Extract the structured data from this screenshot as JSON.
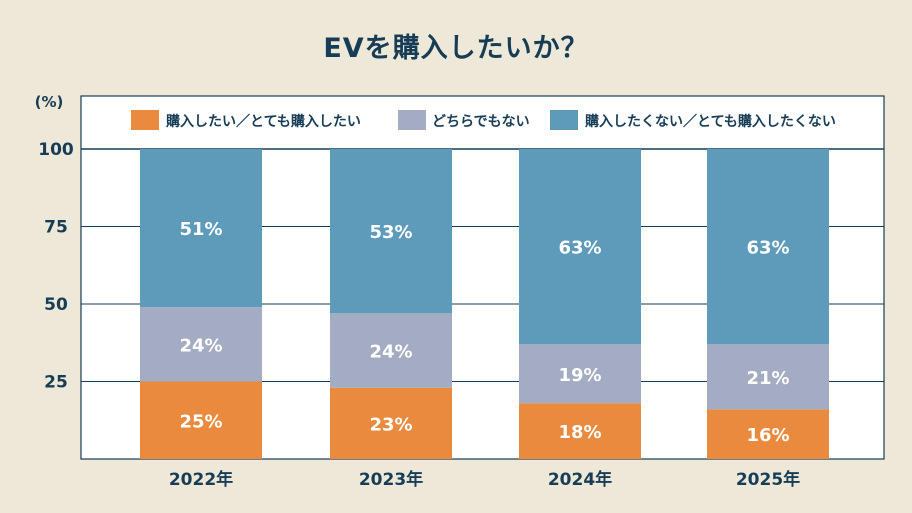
{
  "chart_data": {
    "type": "bar",
    "stacked": true,
    "title": "EVを購入したいか？",
    "ylabel": "(%)",
    "ylim": [
      0,
      100
    ],
    "yticks": [
      25,
      50,
      75,
      100
    ],
    "categories": [
      "2022年",
      "2023年",
      "2024年",
      "2025年"
    ],
    "series": [
      {
        "name": "購入したい／とても購入したい",
        "color": "#ea8a3e",
        "values": [
          25,
          23,
          18,
          16
        ],
        "labels": [
          "25%",
          "23%",
          "18%",
          "16%"
        ]
      },
      {
        "name": "どちらでもない",
        "color": "#a3acc2",
        "values": [
          24,
          24,
          19,
          21
        ],
        "labels": [
          "24%",
          "24%",
          "19%",
          "21%"
        ]
      },
      {
        "name": "購入したくない／とても購入したくない",
        "color": "#5e9aba",
        "values": [
          51,
          53,
          63,
          63
        ],
        "labels": [
          "51%",
          "53%",
          "63%",
          "63%"
        ]
      }
    ],
    "grid": true,
    "legend_position": "top"
  },
  "colors": {
    "background": "#ede8d8",
    "plot_background": "#ffffff",
    "text": "#173c56",
    "grid": "#173c56"
  }
}
